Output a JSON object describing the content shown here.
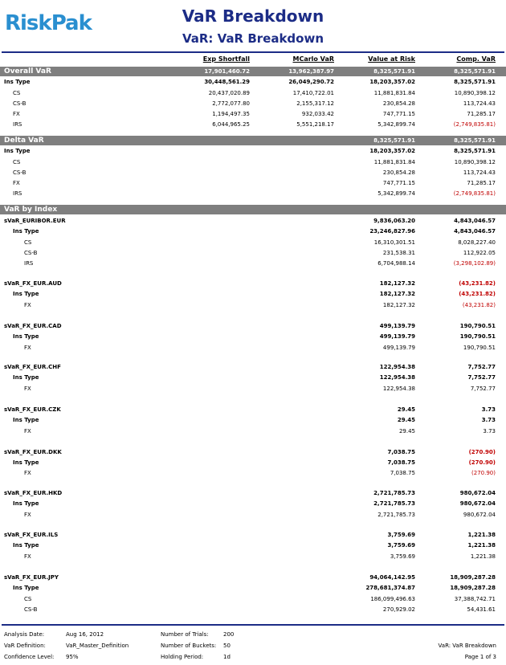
{
  "header": {
    "logo": "RiskPak",
    "title": "VaR Breakdown",
    "subtitle": "VaR: VaR Breakdown"
  },
  "columns": [
    "Exp Shortfall",
    "MCarlo VaR",
    "Value at Risk",
    "Comp. VaR"
  ],
  "rows": [
    {
      "kind": "section",
      "label": "Overall VaR",
      "v": [
        "17,901,460.72",
        "13,962,387.97",
        "8,325,571.91",
        "8,325,571.91"
      ]
    },
    {
      "kind": "group",
      "label": "Ins Type",
      "v": [
        "30,448,561.29",
        "26,049,290.72",
        "18,203,357.02",
        "8,325,571.91"
      ]
    },
    {
      "kind": "item",
      "label": "CS",
      "v": [
        "20,437,020.89",
        "17,410,722.01",
        "11,881,831.84",
        "10,890,398.12"
      ]
    },
    {
      "kind": "item",
      "label": "CS-B",
      "v": [
        "2,772,077.80",
        "2,155,317.12",
        "230,854.28",
        "113,724.43"
      ]
    },
    {
      "kind": "item",
      "label": "FX",
      "v": [
        "1,194,497.35",
        "932,033.42",
        "747,771.15",
        "71,285.17"
      ]
    },
    {
      "kind": "item",
      "label": "IRS",
      "v": [
        "6,044,965.25",
        "5,551,218.17",
        "5,342,899.74",
        "(2,749,835.81)"
      ]
    },
    {
      "kind": "section",
      "label": "Delta VaR",
      "v": [
        "",
        "",
        "8,325,571.91",
        "8,325,571.91"
      ]
    },
    {
      "kind": "group",
      "label": "Ins Type",
      "v": [
        "",
        "",
        "18,203,357.02",
        "8,325,571.91"
      ]
    },
    {
      "kind": "item",
      "label": "CS",
      "v": [
        "",
        "",
        "11,881,831.84",
        "10,890,398.12"
      ]
    },
    {
      "kind": "item",
      "label": "CS-B",
      "v": [
        "",
        "",
        "230,854.28",
        "113,724.43"
      ]
    },
    {
      "kind": "item",
      "label": "FX",
      "v": [
        "",
        "",
        "747,771.15",
        "71,285.17"
      ]
    },
    {
      "kind": "item",
      "label": "IRS",
      "v": [
        "",
        "",
        "5,342,899.74",
        "(2,749,835.81)"
      ]
    },
    {
      "kind": "section",
      "label": "VaR by Index",
      "v": [
        "",
        "",
        "",
        ""
      ]
    },
    {
      "kind": "index",
      "label": "sVaR_EURIBOR.EUR",
      "v": [
        "",
        "",
        "9,836,063.20",
        "4,843,046.57"
      ]
    },
    {
      "kind": "subgroup",
      "label": "Ins Type",
      "v": [
        "",
        "",
        "23,246,827.96",
        "4,843,046.57"
      ]
    },
    {
      "kind": "subitem",
      "label": "CS",
      "v": [
        "",
        "",
        "16,310,301.51",
        "8,028,227.40"
      ]
    },
    {
      "kind": "subitem",
      "label": "CS-B",
      "v": [
        "",
        "",
        "231,538.31",
        "112,922.05"
      ]
    },
    {
      "kind": "subitem",
      "label": "IRS",
      "v": [
        "",
        "",
        "6,704,988.14",
        "(3,298,102.89)"
      ]
    },
    {
      "kind": "index",
      "label": "sVaR_FX_EUR.AUD",
      "v": [
        "",
        "",
        "182,127.32",
        "(43,231.82)"
      ]
    },
    {
      "kind": "subgroup",
      "label": "Ins Type",
      "v": [
        "",
        "",
        "182,127.32",
        "(43,231.82)"
      ]
    },
    {
      "kind": "subitem",
      "label": "FX",
      "v": [
        "",
        "",
        "182,127.32",
        "(43,231.82)"
      ]
    },
    {
      "kind": "index",
      "label": "sVaR_FX_EUR.CAD",
      "v": [
        "",
        "",
        "499,139.79",
        "190,790.51"
      ]
    },
    {
      "kind": "subgroup",
      "label": "Ins Type",
      "v": [
        "",
        "",
        "499,139.79",
        "190,790.51"
      ]
    },
    {
      "kind": "subitem",
      "label": "FX",
      "v": [
        "",
        "",
        "499,139.79",
        "190,790.51"
      ]
    },
    {
      "kind": "index",
      "label": "sVaR_FX_EUR.CHF",
      "v": [
        "",
        "",
        "122,954.38",
        "7,752.77"
      ]
    },
    {
      "kind": "subgroup",
      "label": "Ins Type",
      "v": [
        "",
        "",
        "122,954.38",
        "7,752.77"
      ]
    },
    {
      "kind": "subitem",
      "label": "FX",
      "v": [
        "",
        "",
        "122,954.38",
        "7,752.77"
      ]
    },
    {
      "kind": "index",
      "label": "sVaR_FX_EUR.CZK",
      "v": [
        "",
        "",
        "29.45",
        "3.73"
      ]
    },
    {
      "kind": "subgroup",
      "label": "Ins Type",
      "v": [
        "",
        "",
        "29.45",
        "3.73"
      ]
    },
    {
      "kind": "subitem",
      "label": "FX",
      "v": [
        "",
        "",
        "29.45",
        "3.73"
      ]
    },
    {
      "kind": "index",
      "label": "sVaR_FX_EUR.DKK",
      "v": [
        "",
        "",
        "7,038.75",
        "(270.90)"
      ]
    },
    {
      "kind": "subgroup",
      "label": "Ins Type",
      "v": [
        "",
        "",
        "7,038.75",
        "(270.90)"
      ]
    },
    {
      "kind": "subitem",
      "label": "FX",
      "v": [
        "",
        "",
        "7,038.75",
        "(270.90)"
      ]
    },
    {
      "kind": "index",
      "label": "sVaR_FX_EUR.HKD",
      "v": [
        "",
        "",
        "2,721,785.73",
        "980,672.04"
      ]
    },
    {
      "kind": "subgroup",
      "label": "Ins Type",
      "v": [
        "",
        "",
        "2,721,785.73",
        "980,672.04"
      ]
    },
    {
      "kind": "subitem",
      "label": "FX",
      "v": [
        "",
        "",
        "2,721,785.73",
        "980,672.04"
      ]
    },
    {
      "kind": "index",
      "label": "sVaR_FX_EUR.ILS",
      "v": [
        "",
        "",
        "3,759.69",
        "1,221.38"
      ]
    },
    {
      "kind": "subgroup",
      "label": "Ins Type",
      "v": [
        "",
        "",
        "3,759.69",
        "1,221.38"
      ]
    },
    {
      "kind": "subitem",
      "label": "FX",
      "v": [
        "",
        "",
        "3,759.69",
        "1,221.38"
      ]
    },
    {
      "kind": "index",
      "label": "sVaR_FX_EUR.JPY",
      "v": [
        "",
        "",
        "94,064,142.95",
        "18,909,287.28"
      ]
    },
    {
      "kind": "subgroup",
      "label": "Ins Type",
      "v": [
        "",
        "",
        "278,681,374.87",
        "18,909,287.28"
      ]
    },
    {
      "kind": "subitem",
      "label": "CS",
      "v": [
        "",
        "",
        "186,099,496.63",
        "37,388,742.71"
      ]
    },
    {
      "kind": "subitem",
      "label": "CS-B",
      "v": [
        "",
        "",
        "270,929.02",
        "54,431.61"
      ]
    }
  ],
  "footer": {
    "analysis_date_label": "Analysis Date:",
    "analysis_date": "Aug 16, 2012",
    "var_definition_label": "VaR Definition:",
    "var_definition": "VaR_Master_Definition",
    "confidence_label": "Confidence Level:",
    "confidence": "95%",
    "trials_label": "Number of Trials:",
    "trials": "200",
    "buckets_label": "Number of Buckets:",
    "buckets": "50",
    "holding_label": "Holding Period:",
    "holding": "1d",
    "report_name": "VaR: VaR Breakdown",
    "page": "Page 1 of 3"
  }
}
